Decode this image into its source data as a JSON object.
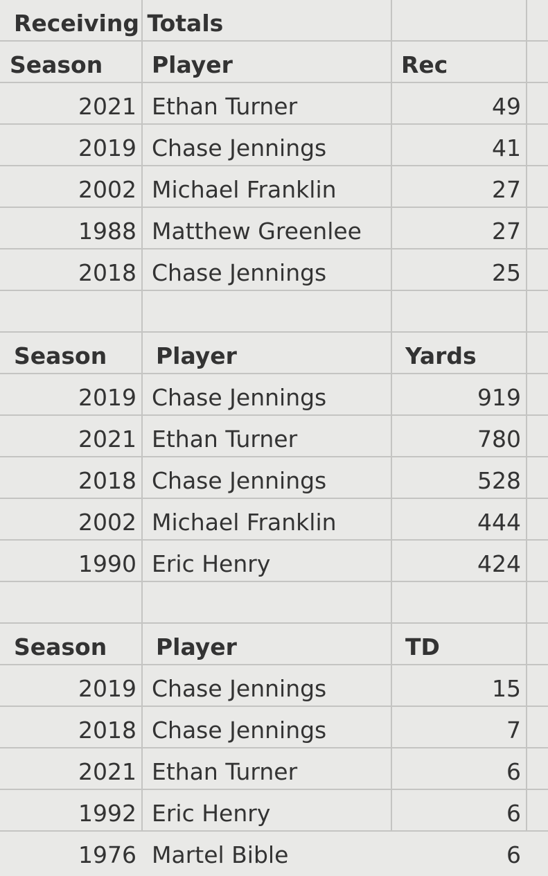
{
  "title": "Receiving Totals",
  "tables": [
    {
      "headers": [
        "Season",
        "Player",
        "Rec"
      ],
      "rows": [
        [
          2021,
          "Ethan Turner",
          49
        ],
        [
          2019,
          "Chase Jennings",
          41
        ],
        [
          2002,
          "Michael Franklin",
          27
        ],
        [
          1988,
          "Matthew Greenlee",
          27
        ],
        [
          2018,
          "Chase Jennings",
          25
        ]
      ]
    },
    {
      "headers": [
        "Season",
        "Player",
        "Yards"
      ],
      "rows": [
        [
          2019,
          "Chase Jennings",
          919
        ],
        [
          2021,
          "Ethan Turner",
          780
        ],
        [
          2018,
          "Chase Jennings",
          528
        ],
        [
          2002,
          "Michael Franklin",
          444
        ],
        [
          1990,
          "Eric Henry",
          424
        ]
      ]
    },
    {
      "headers": [
        "Season",
        "Player",
        "TD"
      ],
      "rows": [
        [
          2019,
          "Chase Jennings",
          15
        ],
        [
          2018,
          "Chase Jennings",
          7
        ],
        [
          2021,
          "Ethan Turner",
          6
        ],
        [
          1992,
          "Eric Henry",
          6
        ],
        [
          1976,
          "Martel Bible",
          6
        ]
      ]
    }
  ]
}
